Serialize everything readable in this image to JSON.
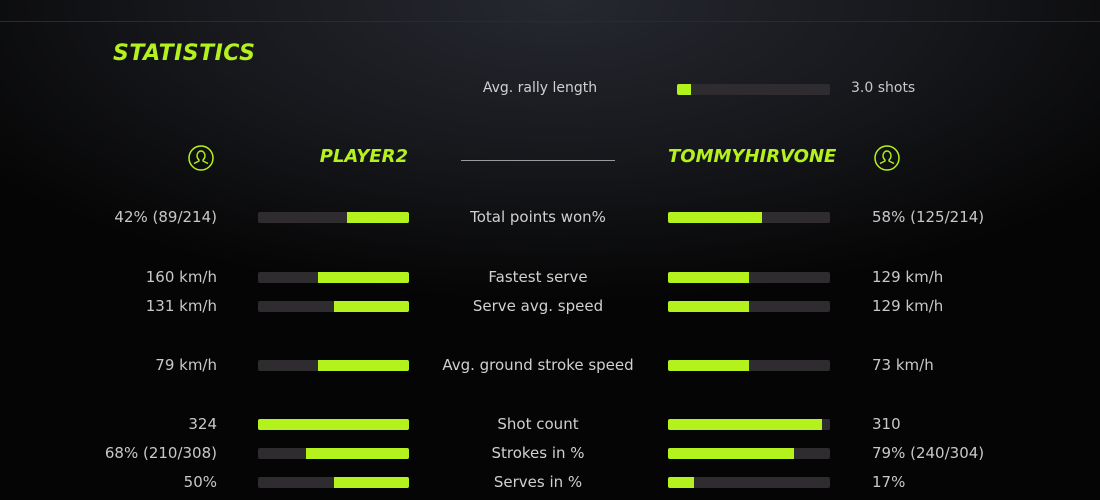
{
  "title": "STATISTICS",
  "accent": "#b4f21e",
  "rally": {
    "label": "Avg. rally length",
    "value": "3.0 shots",
    "fill": 0.09
  },
  "players": {
    "left": {
      "name": "PLAYER2",
      "icon": "user-circle-icon"
    },
    "right": {
      "name": "TOMMYHIRVONE",
      "icon": "user-circle-icon"
    }
  },
  "rows": [
    {
      "label": "Total points won%",
      "left": "42% (89/214)",
      "right": "58% (125/214)",
      "left_fill": 0.41,
      "right_fill": 0.58
    },
    {
      "label": "Fastest serve",
      "left": "160 km/h",
      "right": "129 km/h",
      "left_fill": 0.6,
      "right_fill": 0.5
    },
    {
      "label": "Serve avg. speed",
      "left": "131 km/h",
      "right": "129 km/h",
      "left_fill": 0.5,
      "right_fill": 0.5
    },
    {
      "label": "Avg. ground stroke speed",
      "left": "79 km/h",
      "right": "73 km/h",
      "left_fill": 0.6,
      "right_fill": 0.5
    },
    {
      "label": "Shot count",
      "left": "324",
      "right": "310",
      "left_fill": 1.0,
      "right_fill": 0.95
    },
    {
      "label": "Strokes in %",
      "left": "68% (210/308)",
      "right": "79% (240/304)",
      "left_fill": 0.68,
      "right_fill": 0.78
    },
    {
      "label": "Serves in %",
      "left": "50%",
      "right": "17%",
      "left_fill": 0.5,
      "right_fill": 0.16
    }
  ]
}
